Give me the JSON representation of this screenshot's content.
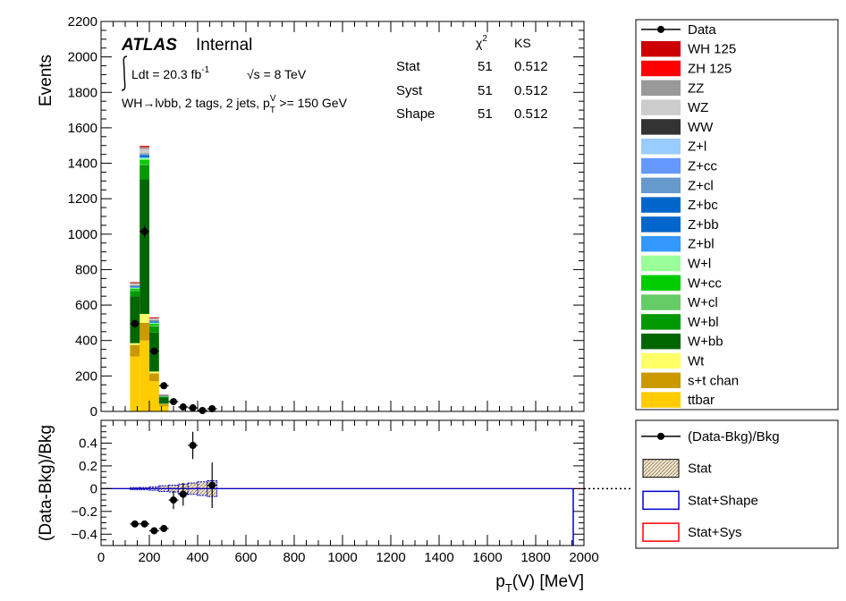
{
  "chart_data": {
    "type": "bar",
    "stacked": true,
    "xlabel": "p_T(V) [MeV]",
    "ylabel": "Events",
    "xlim": [
      0,
      2000
    ],
    "ylim": [
      0,
      2200
    ],
    "yticks": [
      0,
      200,
      400,
      600,
      800,
      1000,
      1200,
      1400,
      1600,
      1800,
      2000,
      2200
    ],
    "xticks": [
      0,
      200,
      400,
      600,
      800,
      1000,
      1200,
      1400,
      1600,
      1800,
      2000
    ],
    "bin_edges": [
      120,
      160,
      200,
      240,
      280
    ],
    "series": [
      {
        "name": "ttbar",
        "color": "#ffcc00",
        "values": [
          310,
          400,
          170,
          30
        ]
      },
      {
        "name": "s+t chan",
        "color": "#cc9900",
        "values": [
          65,
          100,
          45,
          10
        ]
      },
      {
        "name": "Wt",
        "color": "#ffff66",
        "values": [
          10,
          50,
          10,
          3
        ]
      },
      {
        "name": "W+bb",
        "color": "#006600",
        "values": [
          265,
          760,
          220,
          35
        ]
      },
      {
        "name": "W+bl",
        "color": "#009900",
        "values": [
          30,
          80,
          35,
          5
        ]
      },
      {
        "name": "W+cl",
        "color": "#66cc66",
        "values": [
          3,
          5,
          3,
          1
        ]
      },
      {
        "name": "W+cc",
        "color": "#00cc00",
        "values": [
          10,
          25,
          12,
          2
        ]
      },
      {
        "name": "W+l",
        "color": "#99ff99",
        "values": [
          5,
          10,
          5,
          1
        ]
      },
      {
        "name": "Z+bl",
        "color": "#3399ff",
        "values": [
          2,
          4,
          2,
          1
        ]
      },
      {
        "name": "Z+bb",
        "color": "#0066cc",
        "values": [
          5,
          10,
          5,
          1
        ]
      },
      {
        "name": "Z+bc",
        "color": "#0066cc",
        "values": [
          1,
          2,
          1,
          0
        ]
      },
      {
        "name": "Z+cl",
        "color": "#6699cc",
        "values": [
          1,
          2,
          1,
          0
        ]
      },
      {
        "name": "Z+cc",
        "color": "#6699ff",
        "values": [
          1,
          2,
          1,
          0
        ]
      },
      {
        "name": "Z+l",
        "color": "#99ccff",
        "values": [
          1,
          2,
          1,
          0
        ]
      },
      {
        "name": "WW",
        "color": "#333333",
        "values": [
          1,
          3,
          1,
          0
        ]
      },
      {
        "name": "WZ",
        "color": "#cccccc",
        "values": [
          10,
          25,
          10,
          2
        ]
      },
      {
        "name": "ZZ",
        "color": "#999999",
        "values": [
          5,
          10,
          5,
          1
        ]
      },
      {
        "name": "ZH 125",
        "color": "#ff0000",
        "values": [
          1,
          3,
          1,
          0
        ]
      },
      {
        "name": "WH 125",
        "color": "#cc0000",
        "values": [
          3,
          5,
          3,
          1
        ]
      }
    ],
    "data_points": {
      "name": "Data",
      "x": [
        140,
        180,
        220,
        260,
        300,
        340,
        380,
        420,
        460
      ],
      "y": [
        495,
        1015,
        340,
        145,
        55,
        25,
        20,
        5,
        15
      ],
      "yerr": [
        22,
        32,
        18,
        12,
        7,
        5,
        4.5,
        2.2,
        4
      ]
    },
    "ratio": {
      "ylabel": "(Data-Bkg)/Bkg",
      "ylim": [
        -0.5,
        0.6
      ],
      "yticks": [
        -0.4,
        -0.2,
        0,
        0.2,
        0.4
      ],
      "ytick_labels": [
        "−0.4",
        "−0.2",
        "0",
        "0.2",
        "0.4"
      ],
      "points": {
        "name": "(Data-Bkg)/Bkg",
        "x": [
          140,
          180,
          220,
          260,
          300,
          340,
          380,
          460
        ],
        "y": [
          -0.31,
          -0.31,
          -0.37,
          -0.35,
          -0.1,
          -0.05,
          0.38,
          0.03
        ],
        "yerr": [
          0.015,
          0.015,
          0.02,
          0.03,
          0.08,
          0.1,
          0.12,
          0.2
        ]
      },
      "band_edges": [
        120,
        160,
        200,
        240,
        280,
        320,
        360,
        400,
        440,
        480
      ],
      "band_half_width": [
        0.01,
        0.01,
        0.015,
        0.025,
        0.03,
        0.04,
        0.05,
        0.06,
        0.07
      ],
      "legend": [
        {
          "name": "(Data-Bkg)/Bkg",
          "kind": "marker"
        },
        {
          "name": "Stat",
          "kind": "hatched"
        },
        {
          "name": "Stat+Shape",
          "kind": "box",
          "color": "#0000cc"
        },
        {
          "name": "Stat+Sys",
          "kind": "box",
          "color": "#ff0000"
        }
      ]
    },
    "annotations": {
      "atlas": "ATLAS",
      "internal": "Internal",
      "lumi": "Ldt = 20.3 fb",
      "lumi_sup": "-1",
      "energy": "√s = 8 TeV",
      "selection": "WH→lνbb, 2 tags, 2 jets, p",
      "selection_sub": "T",
      "selection_sup": "V",
      "selection_tail": " >= 150 GeV",
      "table_headers": [
        "χ",
        "KS"
      ],
      "chi_sup": "2",
      "table_rows": [
        {
          "label": "Stat",
          "chi2": "51",
          "ks": "0.512"
        },
        {
          "label": "Syst",
          "chi2": "51",
          "ks": "0.512"
        },
        {
          "label": "Shape",
          "chi2": "51",
          "ks": "0.512"
        }
      ]
    },
    "legend_order": [
      "Data",
      "WH 125",
      "ZH 125",
      "ZZ",
      "WZ",
      "WW",
      "Z+l",
      "Z+cc",
      "Z+cl",
      "Z+bc",
      "Z+bb",
      "Z+bl",
      "W+l",
      "W+cc",
      "W+cl",
      "W+bl",
      "W+bb",
      "Wt",
      "s+t chan",
      "ttbar"
    ]
  }
}
